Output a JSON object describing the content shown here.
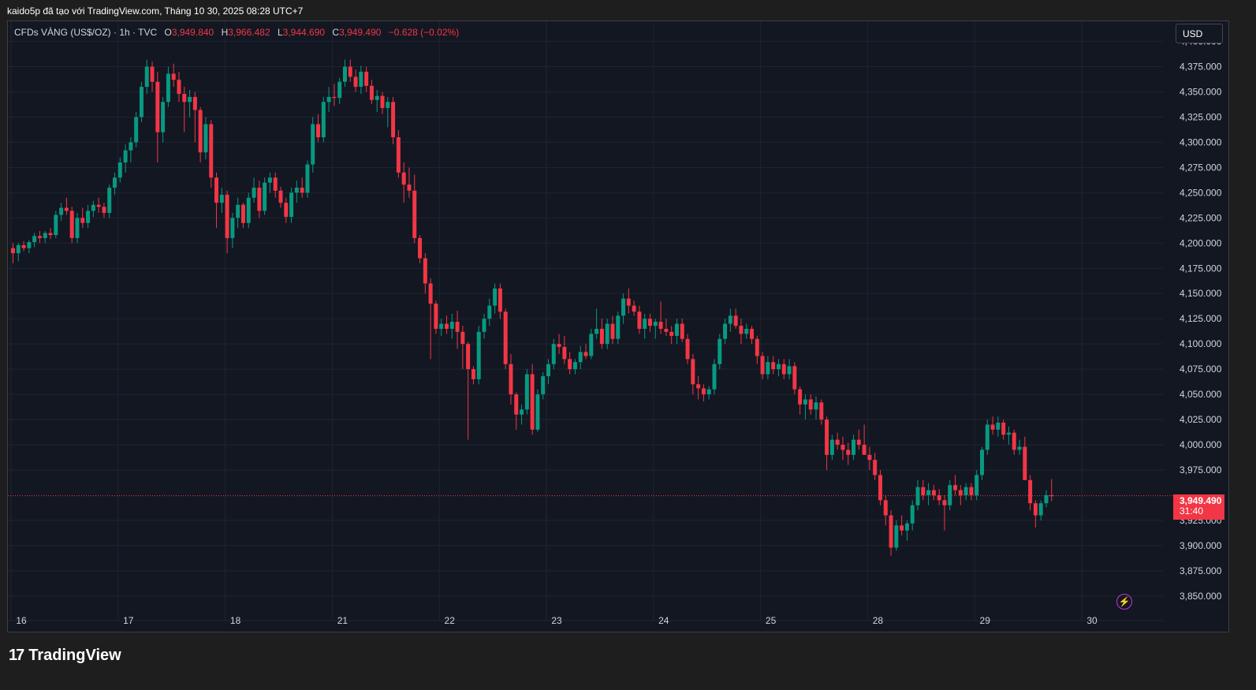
{
  "header": {
    "caption": "kaido5p đã tạo với TradingView.com, Tháng 10 30, 2025 08:28 UTC+7"
  },
  "legend": {
    "symbol": "CFDs VÀNG (US$/OZ) · 1h · TVC",
    "open_label": "O",
    "open": "3,949.840",
    "high_label": "H",
    "high": "3,966.482",
    "low_label": "L",
    "low": "3,944.690",
    "close_label": "C",
    "close": "3,949.490",
    "change": "−0.628 (−0.02%)"
  },
  "currency_button": {
    "label": "USD"
  },
  "last_price": {
    "price": "3,949.490",
    "countdown": "31:40"
  },
  "brand": {
    "logo": "17",
    "name": "TradingView"
  },
  "icons": {
    "alert": "lightning-bolt-icon",
    "logo": "tradingview-logo-icon"
  },
  "colors": {
    "up": "#089981",
    "down": "#f23645",
    "background": "#131722",
    "grid": "#1f2430",
    "text": "#d1d4dc"
  },
  "chart_data": {
    "type": "candlestick",
    "title": "",
    "ylim": [
      3835,
      4420
    ],
    "y_ticks": [
      {
        "value": 4400,
        "label": "4,400.000"
      },
      {
        "value": 4375,
        "label": "4,375.000"
      },
      {
        "value": 4350,
        "label": "4,350.000"
      },
      {
        "value": 4325,
        "label": "4,325.000"
      },
      {
        "value": 4300,
        "label": "4,300.000"
      },
      {
        "value": 4275,
        "label": "4,275.000"
      },
      {
        "value": 4250,
        "label": "4,250.000"
      },
      {
        "value": 4225,
        "label": "4,225.000"
      },
      {
        "value": 4200,
        "label": "4,200.000"
      },
      {
        "value": 4175,
        "label": "4,175.000"
      },
      {
        "value": 4150,
        "label": "4,150.000"
      },
      {
        "value": 4125,
        "label": "4,125.000"
      },
      {
        "value": 4100,
        "label": "4,100.000"
      },
      {
        "value": 4075,
        "label": "4,075.000"
      },
      {
        "value": 4050,
        "label": "4,050.000"
      },
      {
        "value": 4025,
        "label": "4,025.000"
      },
      {
        "value": 4000,
        "label": "4,000.000"
      },
      {
        "value": 3975,
        "label": "3,975.000"
      },
      {
        "value": 3925,
        "label": "3,925.000"
      },
      {
        "value": 3900,
        "label": "3,900.000"
      },
      {
        "value": 3875,
        "label": "3,875.000"
      },
      {
        "value": 3850,
        "label": "3,850.000"
      }
    ],
    "x_ticks": [
      {
        "index": 0,
        "label": "16"
      },
      {
        "index": 20,
        "label": "17"
      },
      {
        "index": 40,
        "label": "18"
      },
      {
        "index": 60,
        "label": "21"
      },
      {
        "index": 80,
        "label": "22"
      },
      {
        "index": 100,
        "label": "23"
      },
      {
        "index": 120,
        "label": "24"
      },
      {
        "index": 140,
        "label": "25"
      },
      {
        "index": 160,
        "label": "28"
      },
      {
        "index": 180,
        "label": "29"
      },
      {
        "index": 200,
        "label": "30"
      }
    ],
    "last_price": 3949.49,
    "candles": [
      [
        4195,
        4200,
        4180,
        4190
      ],
      [
        4190,
        4200,
        4182,
        4198
      ],
      [
        4198,
        4202,
        4192,
        4195
      ],
      [
        4195,
        4203,
        4190,
        4201
      ],
      [
        4201,
        4210,
        4196,
        4207
      ],
      [
        4207,
        4212,
        4200,
        4205
      ],
      [
        4205,
        4212,
        4200,
        4210
      ],
      [
        4210,
        4215,
        4204,
        4208
      ],
      [
        4208,
        4232,
        4205,
        4228
      ],
      [
        4228,
        4240,
        4222,
        4235
      ],
      [
        4235,
        4245,
        4228,
        4232
      ],
      [
        4232,
        4236,
        4200,
        4205
      ],
      [
        4205,
        4230,
        4200,
        4225
      ],
      [
        4225,
        4235,
        4215,
        4220
      ],
      [
        4220,
        4238,
        4215,
        4232
      ],
      [
        4232,
        4242,
        4226,
        4238
      ],
      [
        4238,
        4245,
        4230,
        4236
      ],
      [
        4236,
        4240,
        4225,
        4230
      ],
      [
        4230,
        4258,
        4225,
        4255
      ],
      [
        4255,
        4270,
        4248,
        4265
      ],
      [
        4265,
        4285,
        4260,
        4280
      ],
      [
        4280,
        4298,
        4270,
        4292
      ],
      [
        4292,
        4305,
        4280,
        4300
      ],
      [
        4300,
        4330,
        4295,
        4325
      ],
      [
        4325,
        4360,
        4320,
        4355
      ],
      [
        4355,
        4382,
        4348,
        4375
      ],
      [
        4375,
        4380,
        4350,
        4360
      ],
      [
        4360,
        4370,
        4280,
        4310
      ],
      [
        4310,
        4345,
        4300,
        4340
      ],
      [
        4340,
        4375,
        4335,
        4368
      ],
      [
        4368,
        4378,
        4355,
        4362
      ],
      [
        4362,
        4370,
        4340,
        4348
      ],
      [
        4348,
        4355,
        4310,
        4340
      ],
      [
        4340,
        4352,
        4325,
        4345
      ],
      [
        4345,
        4350,
        4300,
        4332
      ],
      [
        4332,
        4335,
        4280,
        4290
      ],
      [
        4290,
        4325,
        4283,
        4318
      ],
      [
        4318,
        4322,
        4255,
        4265
      ],
      [
        4265,
        4270,
        4215,
        4240
      ],
      [
        4240,
        4255,
        4230,
        4248
      ],
      [
        4248,
        4252,
        4190,
        4205
      ],
      [
        4205,
        4230,
        4195,
        4225
      ],
      [
        4225,
        4245,
        4215,
        4238
      ],
      [
        4238,
        4240,
        4215,
        4220
      ],
      [
        4220,
        4250,
        4215,
        4245
      ],
      [
        4245,
        4265,
        4240,
        4255
      ],
      [
        4255,
        4262,
        4225,
        4232
      ],
      [
        4232,
        4265,
        4228,
        4260
      ],
      [
        4260,
        4270,
        4250,
        4265
      ],
      [
        4265,
        4270,
        4245,
        4252
      ],
      [
        4252,
        4256,
        4235,
        4240
      ],
      [
        4240,
        4245,
        4220,
        4226
      ],
      [
        4226,
        4255,
        4220,
        4250
      ],
      [
        4250,
        4262,
        4240,
        4255
      ],
      [
        4255,
        4265,
        4245,
        4250
      ],
      [
        4250,
        4282,
        4245,
        4278
      ],
      [
        4278,
        4325,
        4270,
        4318
      ],
      [
        4318,
        4328,
        4300,
        4305
      ],
      [
        4305,
        4345,
        4300,
        4340
      ],
      [
        4340,
        4355,
        4330,
        4345
      ],
      [
        4345,
        4358,
        4336,
        4344
      ],
      [
        4344,
        4364,
        4338,
        4360
      ],
      [
        4360,
        4382,
        4355,
        4375
      ],
      [
        4375,
        4382,
        4360,
        4365
      ],
      [
        4365,
        4372,
        4350,
        4355
      ],
      [
        4355,
        4376,
        4348,
        4370
      ],
      [
        4370,
        4375,
        4350,
        4356
      ],
      [
        4356,
        4362,
        4338,
        4342
      ],
      [
        4342,
        4352,
        4330,
        4346
      ],
      [
        4346,
        4350,
        4328,
        4334
      ],
      [
        4334,
        4345,
        4315,
        4340
      ],
      [
        4340,
        4345,
        4298,
        4305
      ],
      [
        4305,
        4312,
        4265,
        4270
      ],
      [
        4270,
        4280,
        4240,
        4258
      ],
      [
        4258,
        4275,
        4245,
        4252
      ],
      [
        4252,
        4268,
        4200,
        4205
      ],
      [
        4205,
        4208,
        4180,
        4185
      ],
      [
        4185,
        4190,
        4150,
        4160
      ],
      [
        4160,
        4165,
        4085,
        4140
      ],
      [
        4140,
        4143,
        4110,
        4115
      ],
      [
        4115,
        4125,
        4108,
        4120
      ],
      [
        4120,
        4128,
        4110,
        4115
      ],
      [
        4115,
        4130,
        4105,
        4122
      ],
      [
        4122,
        4133,
        4095,
        4112
      ],
      [
        4112,
        4118,
        4075,
        4100
      ],
      [
        4100,
        4102,
        4005,
        4075
      ],
      [
        4075,
        4078,
        4060,
        4065
      ],
      [
        4065,
        4118,
        4060,
        4112
      ],
      [
        4112,
        4130,
        4105,
        4125
      ],
      [
        4125,
        4145,
        4118,
        4138
      ],
      [
        4138,
        4160,
        4130,
        4155
      ],
      [
        4155,
        4160,
        4125,
        4132
      ],
      [
        4132,
        4135,
        4075,
        4080
      ],
      [
        4080,
        4090,
        4040,
        4050
      ],
      [
        4050,
        4052,
        4015,
        4030
      ],
      [
        4030,
        4040,
        4020,
        4035
      ],
      [
        4035,
        4075,
        4030,
        4070
      ],
      [
        4070,
        4080,
        4010,
        4015
      ],
      [
        4015,
        4055,
        4013,
        4050
      ],
      [
        4050,
        4072,
        4045,
        4068
      ],
      [
        4068,
        4085,
        4060,
        4080
      ],
      [
        4080,
        4105,
        4075,
        4100
      ],
      [
        4100,
        4110,
        4090,
        4097
      ],
      [
        4097,
        4108,
        4080,
        4085
      ],
      [
        4085,
        4092,
        4070,
        4075
      ],
      [
        4075,
        4085,
        4070,
        4082
      ],
      [
        4082,
        4098,
        4075,
        4092
      ],
      [
        4092,
        4100,
        4085,
        4088
      ],
      [
        4088,
        4115,
        4085,
        4110
      ],
      [
        4110,
        4135,
        4105,
        4115
      ],
      [
        4115,
        4125,
        4095,
        4100
      ],
      [
        4100,
        4125,
        4095,
        4120
      ],
      [
        4120,
        4128,
        4100,
        4105
      ],
      [
        4105,
        4132,
        4100,
        4128
      ],
      [
        4128,
        4150,
        4120,
        4145
      ],
      [
        4145,
        4155,
        4130,
        4138
      ],
      [
        4138,
        4143,
        4128,
        4132
      ],
      [
        4132,
        4138,
        4110,
        4115
      ],
      [
        4115,
        4130,
        4105,
        4125
      ],
      [
        4125,
        4130,
        4112,
        4118
      ],
      [
        4118,
        4125,
        4105,
        4122
      ],
      [
        4122,
        4142,
        4110,
        4115
      ],
      [
        4115,
        4125,
        4108,
        4112
      ],
      [
        4112,
        4118,
        4100,
        4108
      ],
      [
        4108,
        4125,
        4100,
        4120
      ],
      [
        4120,
        4125,
        4102,
        4105
      ],
      [
        4105,
        4110,
        4080,
        4085
      ],
      [
        4085,
        4090,
        4050,
        4060
      ],
      [
        4060,
        4068,
        4045,
        4056
      ],
      [
        4056,
        4060,
        4043,
        4050
      ],
      [
        4050,
        4058,
        4045,
        4055
      ],
      [
        4055,
        4085,
        4050,
        4080
      ],
      [
        4080,
        4110,
        4075,
        4105
      ],
      [
        4105,
        4125,
        4100,
        4120
      ],
      [
        4120,
        4135,
        4112,
        4128
      ],
      [
        4128,
        4135,
        4115,
        4118
      ],
      [
        4118,
        4125,
        4100,
        4110
      ],
      [
        4110,
        4120,
        4105,
        4115
      ],
      [
        4115,
        4118,
        4100,
        4105
      ],
      [
        4105,
        4108,
        4080,
        4088
      ],
      [
        4088,
        4092,
        4065,
        4070
      ],
      [
        4070,
        4088,
        4065,
        4082
      ],
      [
        4082,
        4088,
        4070,
        4075
      ],
      [
        4075,
        4085,
        4068,
        4080
      ],
      [
        4080,
        4085,
        4065,
        4070
      ],
      [
        4070,
        4085,
        4065,
        4078
      ],
      [
        4078,
        4082,
        4050,
        4055
      ],
      [
        4055,
        4058,
        4030,
        4040
      ],
      [
        4040,
        4050,
        4025,
        4045
      ],
      [
        4045,
        4050,
        4030,
        4035
      ],
      [
        4035,
        4048,
        4025,
        4042
      ],
      [
        4042,
        4045,
        4020,
        4025
      ],
      [
        4025,
        4028,
        3975,
        3990
      ],
      [
        3990,
        4010,
        3985,
        4005
      ],
      [
        4005,
        4012,
        3995,
        4000
      ],
      [
        4000,
        4008,
        3985,
        3995
      ],
      [
        3995,
        4002,
        3980,
        3990
      ],
      [
        3990,
        4010,
        3985,
        4005
      ],
      [
        4005,
        4015,
        3995,
        4000
      ],
      [
        4000,
        4020,
        3995,
        3990
      ],
      [
        3990,
        3998,
        3975,
        3985
      ],
      [
        3985,
        3992,
        3965,
        3970
      ],
      [
        3970,
        3975,
        3940,
        3945
      ],
      [
        3945,
        3950,
        3920,
        3930
      ],
      [
        3930,
        3935,
        3890,
        3898
      ],
      [
        3898,
        3925,
        3895,
        3920
      ],
      [
        3920,
        3930,
        3910,
        3915
      ],
      [
        3915,
        3925,
        3905,
        3922
      ],
      [
        3922,
        3945,
        3915,
        3940
      ],
      [
        3940,
        3965,
        3935,
        3958
      ],
      [
        3958,
        3965,
        3945,
        3950
      ],
      [
        3950,
        3962,
        3940,
        3955
      ],
      [
        3955,
        3960,
        3945,
        3950
      ],
      [
        3950,
        3956,
        3940,
        3945
      ],
      [
        3945,
        3950,
        3915,
        3940
      ],
      [
        3940,
        3965,
        3935,
        3960
      ],
      [
        3960,
        3970,
        3950,
        3955
      ],
      [
        3955,
        3960,
        3940,
        3950
      ],
      [
        3950,
        3962,
        3945,
        3958
      ],
      [
        3958,
        3962,
        3945,
        3950
      ],
      [
        3950,
        3975,
        3945,
        3970
      ],
      [
        3970,
        3998,
        3965,
        3995
      ],
      [
        3995,
        4025,
        3990,
        4020
      ],
      [
        4020,
        4028,
        4010,
        4015
      ],
      [
        4015,
        4028,
        4008,
        4022
      ],
      [
        4022,
        4025,
        4005,
        4010
      ],
      [
        4010,
        4018,
        4000,
        4012
      ],
      [
        4012,
        4015,
        3990,
        3995
      ],
      [
        3995,
        4005,
        3990,
        3998
      ],
      [
        3998,
        4008,
        3965,
        3965
      ],
      [
        3965,
        3970,
        3935,
        3942
      ],
      [
        3942,
        3945,
        3918,
        3930
      ],
      [
        3930,
        3945,
        3925,
        3942
      ],
      [
        3942,
        3955,
        3938,
        3950
      ],
      [
        3950,
        3966,
        3944,
        3949
      ]
    ]
  }
}
